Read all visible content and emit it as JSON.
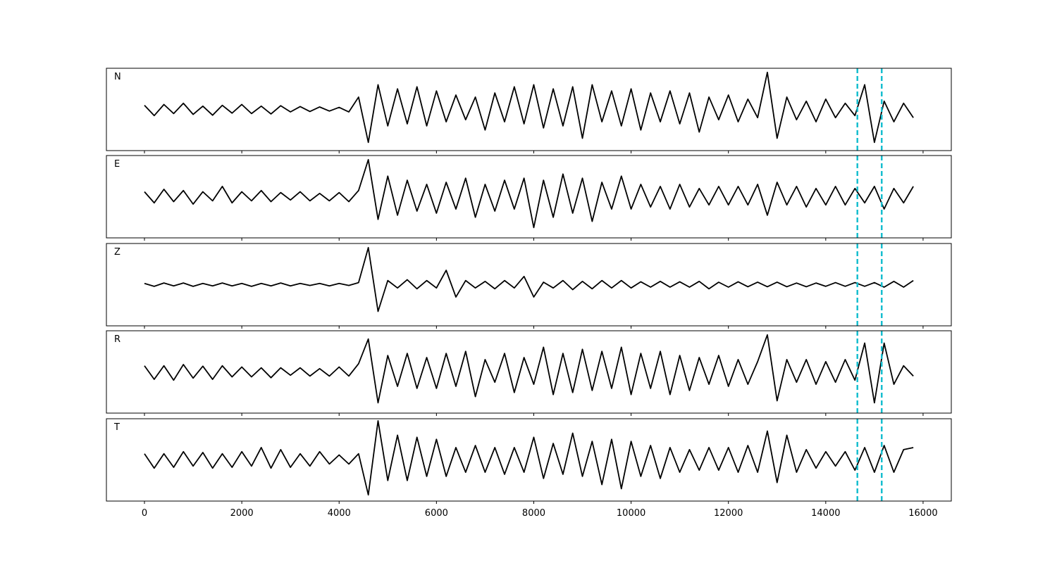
{
  "chart_data": {
    "type": "line",
    "x": [
      0,
      200,
      400,
      600,
      800,
      1000,
      1200,
      1400,
      1600,
      1800,
      2000,
      2200,
      2400,
      2600,
      2800,
      3000,
      3200,
      3400,
      3600,
      3800,
      4000,
      4200,
      4400,
      4600,
      4800,
      5000,
      5200,
      5400,
      5600,
      5800,
      6000,
      6200,
      6400,
      6600,
      6800,
      7000,
      7200,
      7400,
      7600,
      7800,
      8000,
      8200,
      8400,
      8600,
      8800,
      9000,
      9200,
      9400,
      9600,
      9800,
      10000,
      10200,
      10400,
      10600,
      10800,
      11000,
      11200,
      11400,
      11600,
      11800,
      12000,
      12200,
      12400,
      12600,
      12800,
      13000,
      13200,
      13400,
      13600,
      13800,
      14000,
      14200,
      14400,
      14600,
      14800,
      15000,
      15200,
      15400,
      15600,
      15800
    ],
    "xlim": [
      -782,
      16580
    ],
    "ylim": [
      -1,
      1
    ],
    "xticks": [
      0,
      2000,
      4000,
      6000,
      8000,
      10000,
      12000,
      14000,
      16000
    ],
    "vlines": [
      14650,
      15150
    ],
    "vline_color": "#17becf",
    "series": [
      {
        "name": "N",
        "color": "#000000",
        "values": [
          0.1,
          -0.15,
          0.12,
          -0.1,
          0.15,
          -0.12,
          0.08,
          -0.14,
          0.1,
          -0.09,
          0.12,
          -0.1,
          0.08,
          -0.11,
          0.09,
          -0.06,
          0.07,
          -0.05,
          0.06,
          -0.04,
          0.05,
          -0.06,
          0.3,
          -0.8,
          0.6,
          -0.4,
          0.5,
          -0.35,
          0.55,
          -0.4,
          0.45,
          -0.3,
          0.35,
          -0.25,
          0.3,
          -0.5,
          0.4,
          -0.3,
          0.55,
          -0.35,
          0.6,
          -0.45,
          0.5,
          -0.4,
          0.55,
          -0.7,
          0.6,
          -0.3,
          0.45,
          -0.4,
          0.5,
          -0.5,
          0.4,
          -0.3,
          0.45,
          -0.35,
          0.4,
          -0.55,
          0.3,
          -0.25,
          0.35,
          -0.3,
          0.25,
          -0.2,
          0.9,
          -0.7,
          0.3,
          -0.25,
          0.2,
          -0.3,
          0.25,
          -0.2,
          0.15,
          -0.15,
          0.6,
          -0.8,
          0.2,
          -0.3,
          0.15,
          -0.2
        ]
      },
      {
        "name": "E",
        "color": "#000000",
        "values": [
          0.12,
          -0.15,
          0.18,
          -0.12,
          0.15,
          -0.18,
          0.12,
          -0.1,
          0.25,
          -0.15,
          0.12,
          -0.1,
          0.15,
          -0.12,
          0.1,
          -0.08,
          0.12,
          -0.1,
          0.08,
          -0.1,
          0.1,
          -0.12,
          0.15,
          0.9,
          -0.55,
          0.5,
          -0.45,
          0.4,
          -0.35,
          0.3,
          -0.4,
          0.35,
          -0.3,
          0.45,
          -0.5,
          0.3,
          -0.35,
          0.4,
          -0.3,
          0.45,
          -0.75,
          0.4,
          -0.5,
          0.55,
          -0.4,
          0.45,
          -0.6,
          0.35,
          -0.3,
          0.5,
          -0.3,
          0.3,
          -0.25,
          0.25,
          -0.3,
          0.3,
          -0.25,
          0.2,
          -0.2,
          0.25,
          -0.2,
          0.25,
          -0.2,
          0.3,
          -0.45,
          0.35,
          -0.2,
          0.25,
          -0.25,
          0.2,
          -0.2,
          0.25,
          -0.2,
          0.2,
          -0.15,
          0.25,
          -0.3,
          0.2,
          -0.15,
          0.25
        ]
      },
      {
        "name": "Z",
        "color": "#000000",
        "values": [
          0.03,
          -0.04,
          0.04,
          -0.03,
          0.04,
          -0.04,
          0.03,
          -0.03,
          0.04,
          -0.03,
          0.03,
          -0.04,
          0.03,
          -0.03,
          0.04,
          -0.03,
          0.03,
          -0.02,
          0.03,
          -0.03,
          0.03,
          -0.02,
          0.05,
          0.9,
          -0.65,
          0.1,
          -0.08,
          0.12,
          -0.1,
          0.1,
          -0.08,
          0.35,
          -0.3,
          0.1,
          -0.08,
          0.08,
          -0.1,
          0.1,
          -0.08,
          0.2,
          -0.3,
          0.06,
          -0.08,
          0.1,
          -0.12,
          0.08,
          -0.1,
          0.1,
          -0.08,
          0.1,
          -0.08,
          0.07,
          -0.06,
          0.08,
          -0.06,
          0.07,
          -0.06,
          0.08,
          -0.1,
          0.06,
          -0.06,
          0.07,
          -0.05,
          0.06,
          -0.05,
          0.06,
          -0.05,
          0.04,
          -0.05,
          0.04,
          -0.04,
          0.05,
          -0.04,
          0.05,
          -0.04,
          0.05,
          -0.06,
          0.08,
          -0.06,
          0.1
        ]
      },
      {
        "name": "R",
        "color": "#000000",
        "values": [
          0.15,
          -0.18,
          0.15,
          -0.2,
          0.18,
          -0.15,
          0.14,
          -0.18,
          0.15,
          -0.12,
          0.12,
          -0.12,
          0.1,
          -0.14,
          0.1,
          -0.08,
          0.1,
          -0.1,
          0.08,
          -0.1,
          0.12,
          -0.1,
          0.2,
          0.8,
          -0.75,
          0.4,
          -0.35,
          0.45,
          -0.4,
          0.35,
          -0.4,
          0.45,
          -0.35,
          0.5,
          -0.6,
          0.3,
          -0.25,
          0.45,
          -0.5,
          0.35,
          -0.3,
          0.6,
          -0.55,
          0.45,
          -0.5,
          0.55,
          -0.45,
          0.5,
          -0.4,
          0.6,
          -0.55,
          0.45,
          -0.4,
          0.5,
          -0.55,
          0.4,
          -0.45,
          0.35,
          -0.3,
          0.4,
          -0.35,
          0.3,
          -0.3,
          0.25,
          0.9,
          -0.7,
          0.3,
          -0.25,
          0.3,
          -0.3,
          0.25,
          -0.25,
          0.3,
          -0.2,
          0.7,
          -0.75,
          0.7,
          -0.3,
          0.15,
          -0.1
        ]
      },
      {
        "name": "T",
        "color": "#000000",
        "values": [
          0.15,
          -0.2,
          0.15,
          -0.18,
          0.2,
          -0.15,
          0.18,
          -0.2,
          0.15,
          -0.18,
          0.2,
          -0.15,
          0.3,
          -0.2,
          0.25,
          -0.18,
          0.15,
          -0.15,
          0.2,
          -0.1,
          0.12,
          -0.1,
          0.15,
          -0.85,
          0.95,
          -0.5,
          0.6,
          -0.5,
          0.55,
          -0.4,
          0.5,
          -0.4,
          0.3,
          -0.3,
          0.35,
          -0.3,
          0.3,
          -0.35,
          0.3,
          -0.3,
          0.55,
          -0.45,
          0.4,
          -0.35,
          0.65,
          -0.4,
          0.45,
          -0.6,
          0.5,
          -0.7,
          0.45,
          -0.4,
          0.35,
          -0.45,
          0.3,
          -0.3,
          0.25,
          -0.25,
          0.3,
          -0.25,
          0.3,
          -0.3,
          0.35,
          -0.3,
          0.7,
          -0.55,
          0.6,
          -0.3,
          0.25,
          -0.2,
          0.2,
          -0.15,
          0.2,
          -0.25,
          0.3,
          -0.3,
          0.35,
          -0.3,
          0.25,
          0.3
        ]
      }
    ]
  }
}
